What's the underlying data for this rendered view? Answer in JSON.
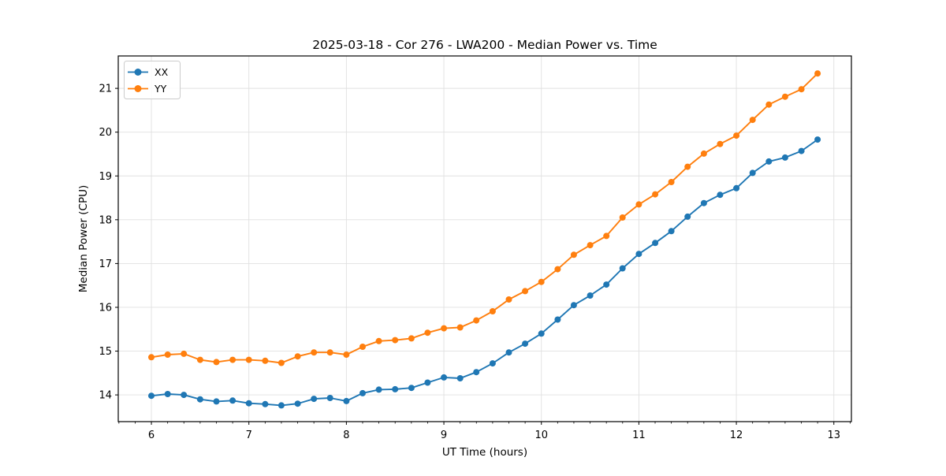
{
  "chart_data": {
    "type": "line",
    "title": "2025-03-18 - Cor 276 - LWA200 - Median Power vs. Time",
    "xlabel": "UT Time (hours)",
    "ylabel": "Median Power (CPU)",
    "x": [
      6.0,
      6.167,
      6.333,
      6.5,
      6.667,
      6.833,
      7.0,
      7.167,
      7.333,
      7.5,
      7.667,
      7.833,
      8.0,
      8.167,
      8.333,
      8.5,
      8.667,
      8.833,
      9.0,
      9.167,
      9.333,
      9.5,
      9.667,
      9.833,
      10.0,
      10.167,
      10.333,
      10.5,
      10.667,
      10.833,
      11.0,
      11.167,
      11.333,
      11.5,
      11.667,
      11.833,
      12.0,
      12.167,
      12.333,
      12.5,
      12.667,
      12.833
    ],
    "series": [
      {
        "name": "XX",
        "color": "#1f77b4",
        "values": [
          13.98,
          14.02,
          14.0,
          13.9,
          13.85,
          13.87,
          13.81,
          13.79,
          13.76,
          13.8,
          13.91,
          13.93,
          13.86,
          14.04,
          14.12,
          14.13,
          14.16,
          14.28,
          14.4,
          14.38,
          14.52,
          14.72,
          14.97,
          15.17,
          15.4,
          15.72,
          16.05,
          16.27,
          16.52,
          16.89,
          17.22,
          17.47,
          17.74,
          18.07,
          18.38,
          18.57,
          18.72,
          19.07,
          19.33,
          19.42,
          19.57,
          19.83
        ]
      },
      {
        "name": "YY",
        "color": "#ff7f0e",
        "values": [
          14.86,
          14.92,
          14.94,
          14.8,
          14.75,
          14.8,
          14.8,
          14.78,
          14.73,
          14.88,
          14.97,
          14.97,
          14.92,
          15.1,
          15.23,
          15.25,
          15.29,
          15.42,
          15.52,
          15.54,
          15.7,
          15.91,
          16.18,
          16.37,
          16.58,
          16.87,
          17.2,
          17.42,
          17.63,
          18.05,
          18.35,
          18.58,
          18.86,
          19.21,
          19.51,
          19.73,
          19.92,
          20.28,
          20.63,
          20.81,
          20.98,
          21.34
        ]
      }
    ],
    "xticks": [
      6,
      7,
      8,
      9,
      10,
      11,
      12,
      13
    ],
    "yticks": [
      14,
      15,
      16,
      17,
      18,
      19,
      20,
      21
    ],
    "xlim": [
      5.66,
      13.18
    ],
    "ylim": [
      13.39,
      21.74
    ],
    "grid": true,
    "grid_color": "#e0e0e0",
    "legend_position": "upper left",
    "minor_ticks_x_per_major": 6
  }
}
